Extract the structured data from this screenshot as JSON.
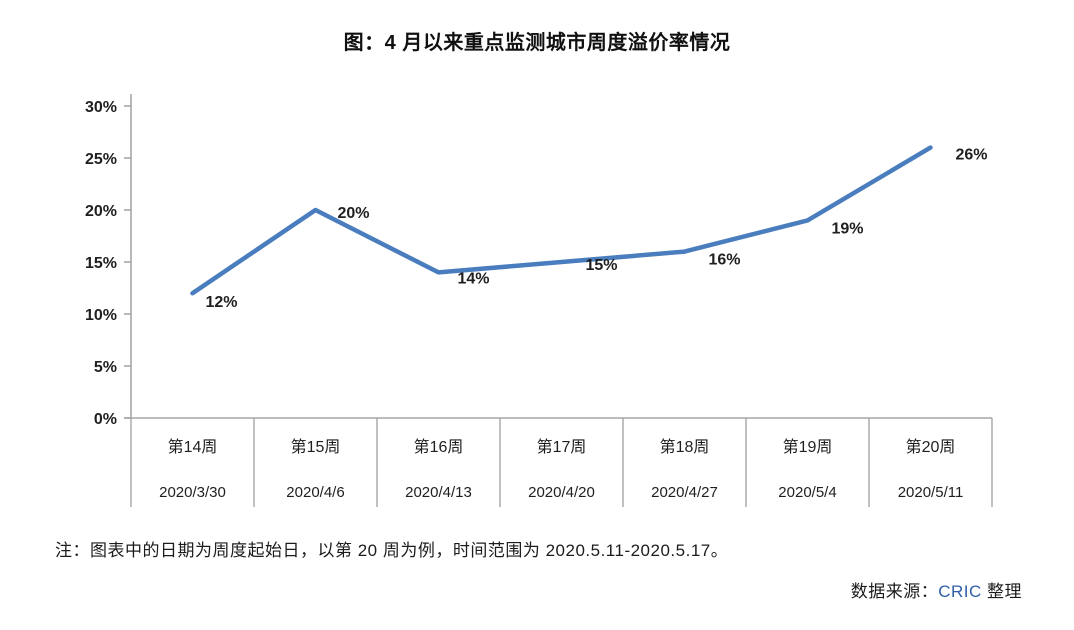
{
  "chart_data": {
    "type": "line",
    "title": "图：4 月以来重点监测城市周度溢价率情况",
    "categories": [
      "第14周",
      "第15周",
      "第16周",
      "第17周",
      "第18周",
      "第19周",
      "第20周"
    ],
    "category_dates": [
      "2020/3/30",
      "2020/4/6",
      "2020/4/13",
      "2020/4/20",
      "2020/4/27",
      "2020/5/4",
      "2020/5/11"
    ],
    "series": [
      {
        "name": "周度溢价率",
        "values": [
          12,
          20,
          14,
          15,
          16,
          19,
          26
        ]
      }
    ],
    "data_labels": [
      "12%",
      "20%",
      "14%",
      "15%",
      "16%",
      "19%",
      "26%"
    ],
    "yticks": [
      "0%",
      "5%",
      "10%",
      "15%",
      "20%",
      "25%",
      "30%"
    ],
    "ylim": [
      0,
      30
    ],
    "xlabel": "",
    "ylabel": "",
    "grid": false,
    "legend": "none",
    "line_color": "#4A7DBE",
    "axis_color": "#A6A6A6",
    "label_color": "#1f1f1f"
  },
  "note": {
    "text": "注：图表中的日期为周度起始日，以第 20 周为例，时间范围为 2020.5.11-2020.5.17。"
  },
  "source": {
    "prefix": "数据来源：",
    "brand": "CRIC",
    "suffix": " 整理",
    "brand_color": "#2E5FA8"
  }
}
